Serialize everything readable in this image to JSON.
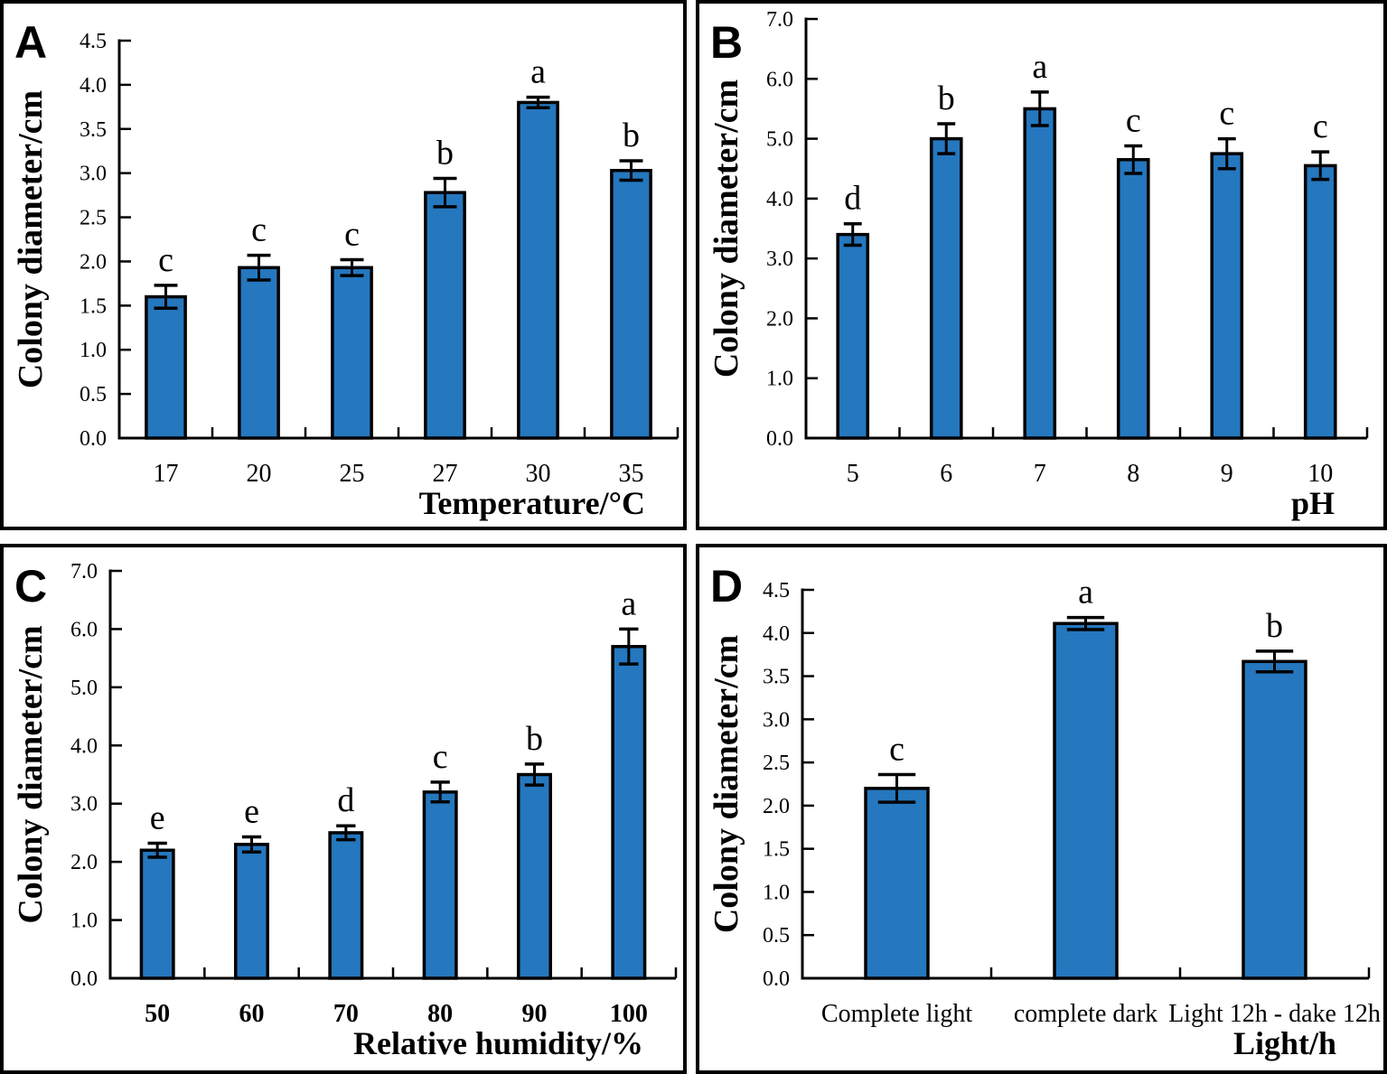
{
  "figure_title": "",
  "colors": {
    "bar_fill": "#2577BE",
    "bar_stroke": "#000000",
    "axis": "#000000",
    "text": "#000000",
    "panel_border": "#000000",
    "background": "#ffffff"
  },
  "chart_data": [
    {
      "panel": "A",
      "type": "bar",
      "categories": [
        "17",
        "20",
        "25",
        "27",
        "30",
        "35"
      ],
      "values": [
        1.6,
        1.93,
        1.93,
        2.78,
        3.8,
        3.03
      ],
      "errors": [
        0.13,
        0.14,
        0.09,
        0.16,
        0.06,
        0.11
      ],
      "sig_letters": [
        "c",
        "c",
        "c",
        "b",
        "a",
        "b"
      ],
      "xlabel": "Temperature/°C",
      "ylabel": "Colony diameter/cm",
      "ylim": [
        0,
        4.5
      ],
      "ytick_labels": [
        "0.0",
        "0.5",
        "1.0",
        "1.5",
        "2.0",
        "2.5",
        "3.0",
        "3.5",
        "4.0",
        "4.5"
      ],
      "grid": false,
      "legend": "none"
    },
    {
      "panel": "B",
      "type": "bar",
      "categories": [
        "5",
        "6",
        "7",
        "8",
        "9",
        "10"
      ],
      "values": [
        3.4,
        5.0,
        5.5,
        4.65,
        4.75,
        4.55
      ],
      "errors": [
        0.18,
        0.25,
        0.28,
        0.23,
        0.25,
        0.23
      ],
      "sig_letters": [
        "d",
        "b",
        "a",
        "c",
        "c",
        "c"
      ],
      "xlabel": "pH",
      "ylabel": "Colony diameter/cm",
      "ylim": [
        0,
        7.0
      ],
      "ytick_labels": [
        "0.0",
        "1.0",
        "2.0",
        "3.0",
        "4.0",
        "5.0",
        "6.0",
        "7.0"
      ],
      "grid": false,
      "legend": "none"
    },
    {
      "panel": "C",
      "type": "bar",
      "categories": [
        "50",
        "60",
        "70",
        "80",
        "90",
        "100"
      ],
      "values": [
        2.2,
        2.3,
        2.5,
        3.2,
        3.5,
        5.7
      ],
      "errors": [
        0.12,
        0.13,
        0.12,
        0.17,
        0.18,
        0.3
      ],
      "sig_letters": [
        "e",
        "e",
        "d",
        "c",
        "b",
        "a"
      ],
      "xlabel": "Relative humidity/%",
      "ylabel": "Colony diameter/cm",
      "ylim": [
        0,
        7.0
      ],
      "ytick_labels": [
        "0.0",
        "1.0",
        "2.0",
        "3.0",
        "4.0",
        "5.0",
        "6.0",
        "7.0"
      ],
      "grid": false,
      "legend": "none"
    },
    {
      "panel": "D",
      "type": "bar",
      "categories": [
        "Complete light",
        "complete dark",
        "Light 12h - dake 12h"
      ],
      "values": [
        2.2,
        4.11,
        3.67
      ],
      "errors": [
        0.16,
        0.07,
        0.12
      ],
      "sig_letters": [
        "c",
        "a",
        "b"
      ],
      "xlabel": "Light/h",
      "ylabel": "Colony diameter/cm",
      "ylim": [
        0,
        4.5
      ],
      "ytick_labels": [
        "0.0",
        "0.5",
        "1.0",
        "1.5",
        "2.0",
        "2.5",
        "3.0",
        "3.5",
        "4.0",
        "4.5"
      ],
      "grid": false,
      "legend": "none"
    }
  ]
}
